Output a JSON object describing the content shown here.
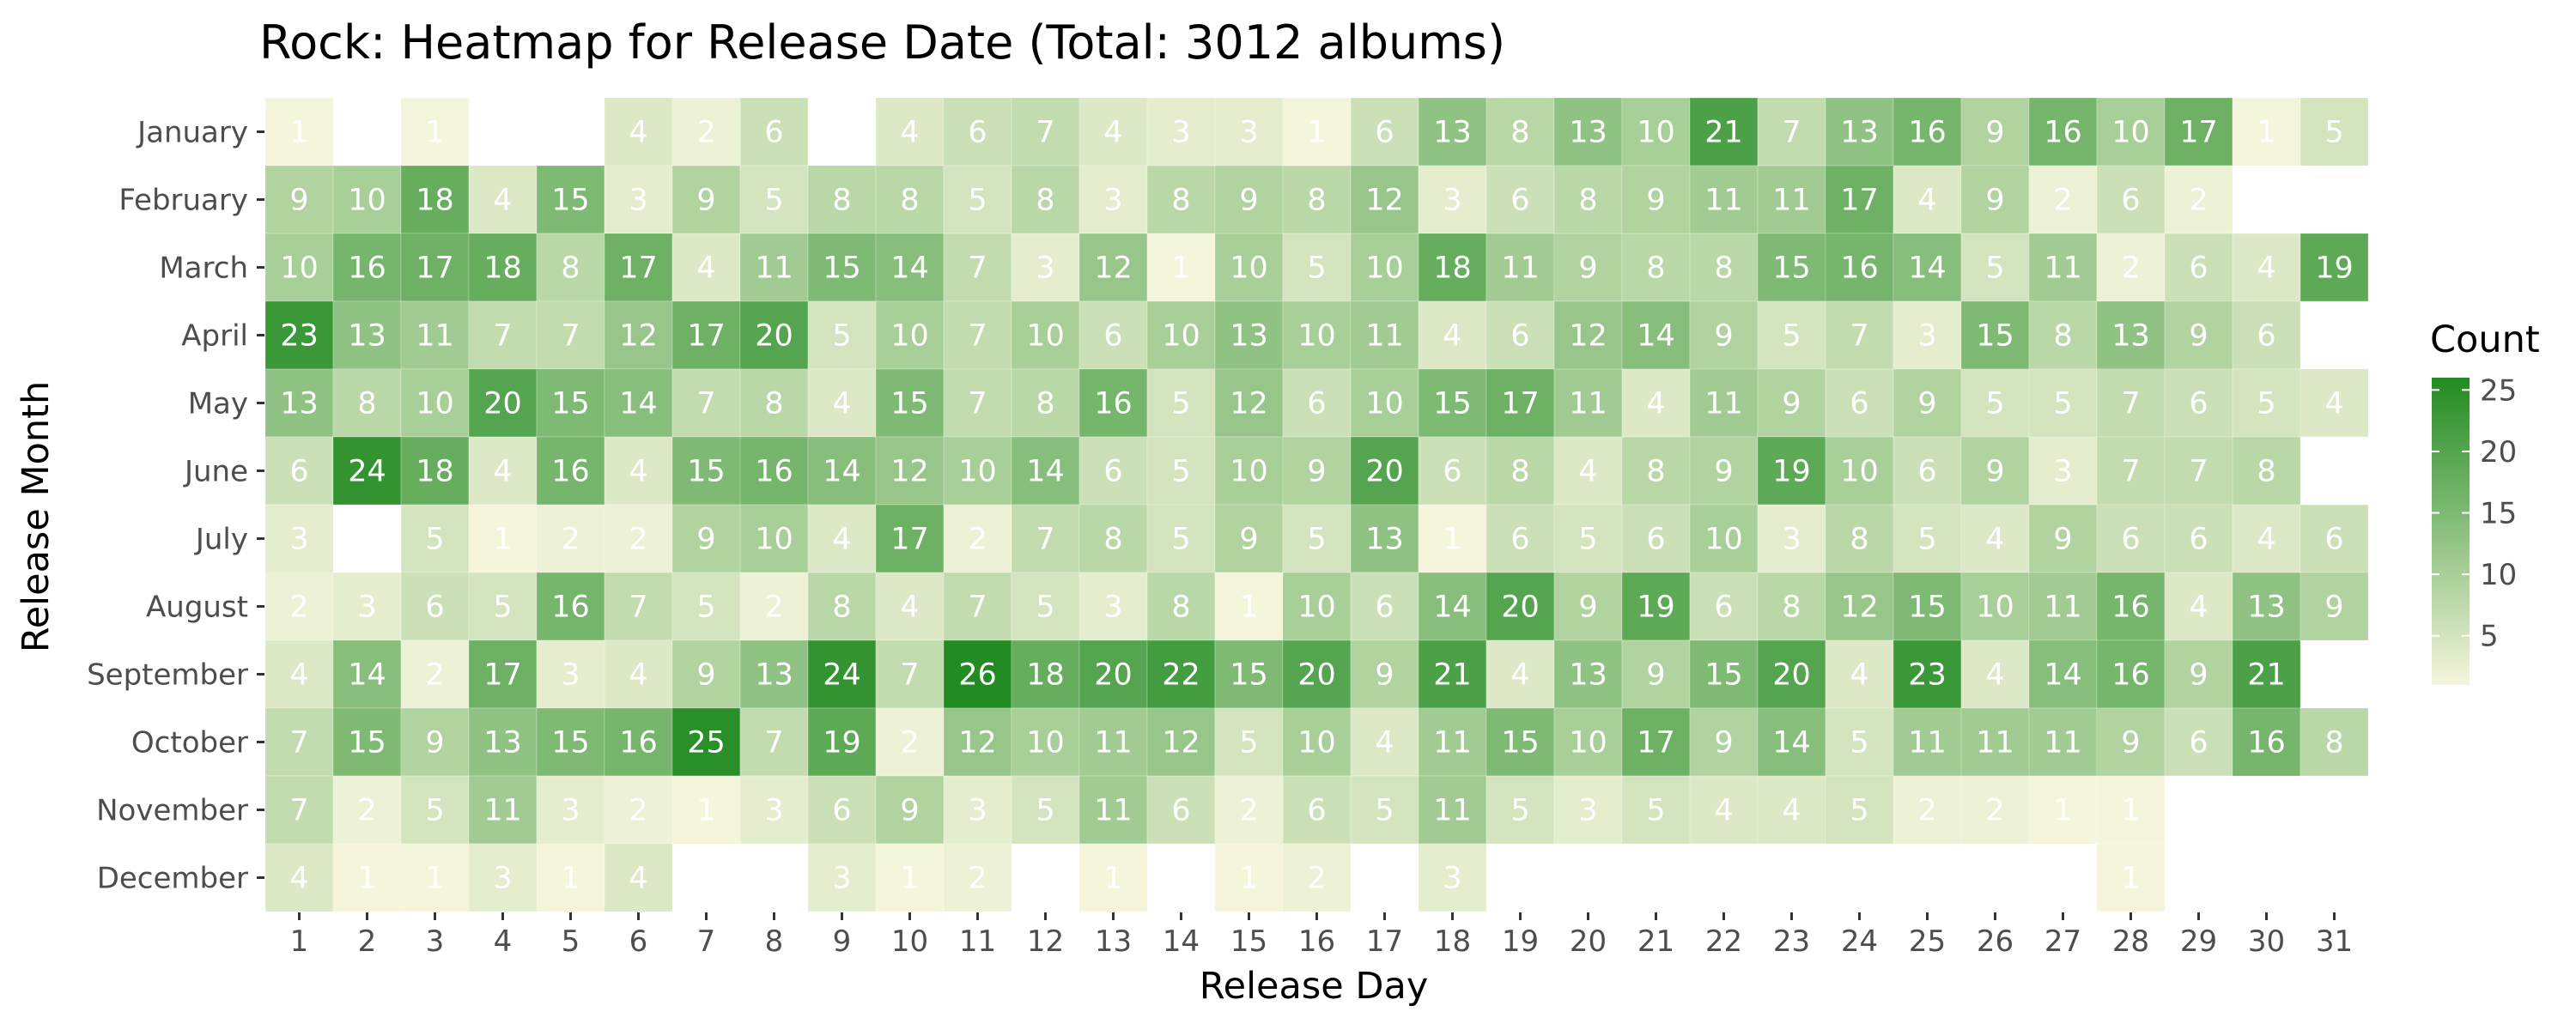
{
  "chart_data": {
    "type": "heatmap",
    "title": "Rock: Heatmap for Release Date (Total: 3012 albums)",
    "xlabel": "Release Day",
    "ylabel": "Release Month",
    "x_categories": [
      "1",
      "2",
      "3",
      "4",
      "5",
      "6",
      "7",
      "8",
      "9",
      "10",
      "11",
      "12",
      "13",
      "14",
      "15",
      "16",
      "17",
      "18",
      "19",
      "20",
      "21",
      "22",
      "23",
      "24",
      "25",
      "26",
      "27",
      "28",
      "29",
      "30",
      "31"
    ],
    "y_categories": [
      "January",
      "February",
      "March",
      "April",
      "May",
      "June",
      "July",
      "August",
      "September",
      "October",
      "November",
      "December"
    ],
    "values": [
      [
        1,
        null,
        1,
        null,
        null,
        4,
        2,
        6,
        null,
        4,
        6,
        7,
        4,
        3,
        3,
        1,
        6,
        13,
        8,
        13,
        10,
        21,
        7,
        13,
        16,
        9,
        16,
        10,
        17,
        1,
        5
      ],
      [
        9,
        10,
        18,
        4,
        15,
        3,
        9,
        5,
        8,
        8,
        5,
        8,
        3,
        8,
        9,
        8,
        12,
        3,
        6,
        8,
        9,
        11,
        11,
        17,
        4,
        9,
        2,
        6,
        2,
        null,
        null
      ],
      [
        10,
        16,
        17,
        18,
        8,
        17,
        4,
        11,
        15,
        14,
        7,
        3,
        12,
        1,
        10,
        5,
        10,
        18,
        11,
        9,
        8,
        8,
        15,
        16,
        14,
        5,
        11,
        2,
        6,
        4,
        19
      ],
      [
        23,
        13,
        11,
        7,
        7,
        12,
        17,
        20,
        5,
        10,
        7,
        10,
        6,
        10,
        13,
        10,
        11,
        4,
        6,
        12,
        14,
        9,
        5,
        7,
        3,
        15,
        8,
        13,
        9,
        6,
        null
      ],
      [
        13,
        8,
        10,
        20,
        15,
        14,
        7,
        8,
        4,
        15,
        7,
        8,
        16,
        5,
        12,
        6,
        10,
        15,
        17,
        11,
        4,
        11,
        9,
        6,
        9,
        5,
        5,
        7,
        6,
        5,
        4
      ],
      [
        6,
        24,
        18,
        4,
        16,
        4,
        15,
        16,
        14,
        12,
        10,
        14,
        6,
        5,
        10,
        9,
        20,
        6,
        8,
        4,
        8,
        9,
        19,
        10,
        6,
        9,
        3,
        7,
        7,
        8,
        null
      ],
      [
        3,
        null,
        5,
        1,
        2,
        2,
        9,
        10,
        4,
        17,
        2,
        7,
        8,
        5,
        9,
        5,
        13,
        1,
        6,
        5,
        6,
        10,
        3,
        8,
        5,
        4,
        9,
        6,
        6,
        4,
        6
      ],
      [
        2,
        3,
        6,
        5,
        16,
        7,
        5,
        2,
        8,
        4,
        7,
        5,
        3,
        8,
        1,
        10,
        6,
        14,
        20,
        9,
        19,
        6,
        8,
        12,
        15,
        10,
        11,
        16,
        4,
        13,
        9
      ],
      [
        4,
        14,
        2,
        17,
        3,
        4,
        9,
        13,
        24,
        7,
        26,
        18,
        20,
        22,
        15,
        20,
        9,
        21,
        4,
        13,
        9,
        15,
        20,
        4,
        23,
        4,
        14,
        16,
        9,
        21,
        null
      ],
      [
        7,
        15,
        9,
        13,
        15,
        16,
        25,
        7,
        19,
        2,
        12,
        10,
        11,
        12,
        5,
        10,
        4,
        11,
        15,
        10,
        17,
        9,
        14,
        5,
        11,
        11,
        11,
        9,
        6,
        16,
        8
      ],
      [
        7,
        2,
        5,
        11,
        3,
        2,
        1,
        3,
        6,
        9,
        3,
        5,
        11,
        6,
        2,
        6,
        5,
        11,
        5,
        3,
        5,
        4,
        4,
        5,
        2,
        2,
        1,
        1,
        null,
        null,
        null
      ],
      [
        4,
        1,
        1,
        3,
        1,
        4,
        null,
        null,
        3,
        1,
        2,
        null,
        1,
        null,
        1,
        2,
        null,
        3,
        null,
        null,
        null,
        null,
        null,
        null,
        null,
        null,
        null,
        1,
        null,
        null,
        null
      ]
    ],
    "legend": {
      "title": "Count",
      "ticks": [
        5,
        10,
        15,
        20,
        25
      ],
      "range": [
        1,
        26
      ],
      "low_color": "#f5f5dc",
      "high_color": "#228b22"
    }
  }
}
